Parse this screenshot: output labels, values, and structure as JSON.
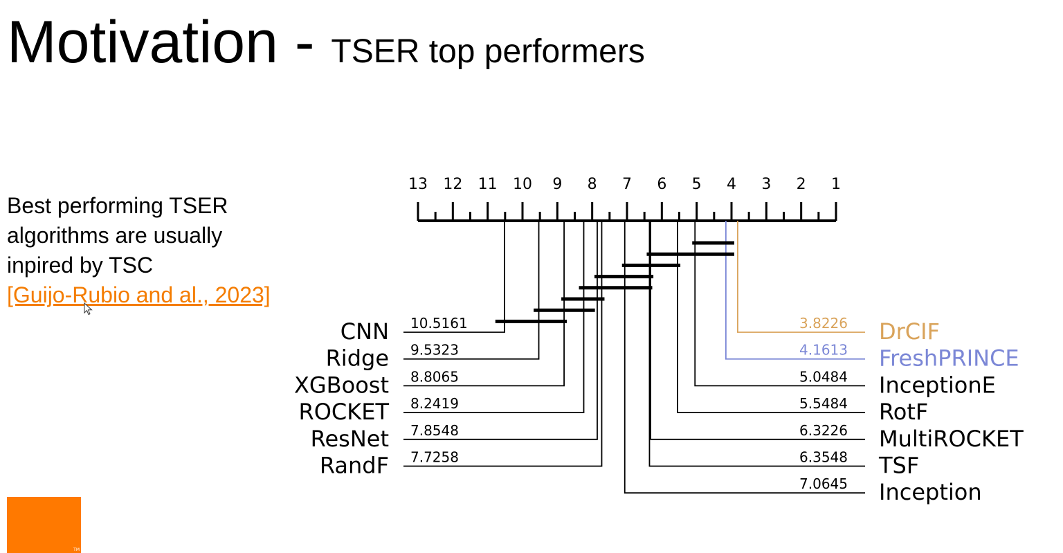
{
  "slide": {
    "title_main": "Motivation - ",
    "title_sub": "TSER top performers",
    "body_lines": [
      "Best performing TSER",
      "algorithms are usually",
      "inpired by TSC"
    ],
    "citation": "[Guijo-Rubio and al., 2023]"
  },
  "icons": {
    "cursor": "mouse-pointer-icon",
    "logo": "orange-square-logo"
  },
  "colors": {
    "accent_link": "#f47c00",
    "logo": "#ff7900",
    "drcif": "#d9a35a",
    "freshprince": "#7b87d6",
    "default_line": "#000000"
  },
  "chart_data": {
    "type": "critical-difference-diagram",
    "axis": {
      "ticks": [
        13,
        12,
        11,
        10,
        9,
        8,
        7,
        6,
        5,
        4,
        3,
        2,
        1
      ],
      "range": [
        13,
        1
      ],
      "minor_ticks": true
    },
    "left_methods": [
      {
        "name": "CNN",
        "rank": 10.5161,
        "label": "10.5161"
      },
      {
        "name": "Ridge",
        "rank": 9.5323,
        "label": "9.5323"
      },
      {
        "name": "XGBoost",
        "rank": 8.8065,
        "label": "8.8065"
      },
      {
        "name": "ROCKET",
        "rank": 8.2419,
        "label": "8.2419"
      },
      {
        "name": "ResNet",
        "rank": 7.8548,
        "label": "7.8548"
      },
      {
        "name": "RandF",
        "rank": 7.7258,
        "label": "7.7258"
      }
    ],
    "right_methods": [
      {
        "name": "DrCIF",
        "rank": 3.8226,
        "label": "3.8226",
        "color": "#d9a35a"
      },
      {
        "name": "FreshPRINCE",
        "rank": 4.1613,
        "label": "4.1613",
        "color": "#7b87d6"
      },
      {
        "name": "InceptionE",
        "rank": 5.0484,
        "label": "5.0484"
      },
      {
        "name": "RotF",
        "rank": 5.5484,
        "label": "5.5484"
      },
      {
        "name": "MultiROCKET",
        "rank": 6.3226,
        "label": "6.3226"
      },
      {
        "name": "TSF",
        "rank": 6.3548,
        "label": "6.3548"
      },
      {
        "name": "Inception",
        "rank": 7.0645,
        "label": "7.0645"
      }
    ],
    "cliques": [
      {
        "from": 5.0484,
        "to": 4.0
      },
      {
        "from": 6.3548,
        "to": 4.0
      },
      {
        "from": 7.0645,
        "to": 5.5484
      },
      {
        "from": 7.8548,
        "to": 6.3226
      },
      {
        "from": 8.3,
        "to": 6.3548
      },
      {
        "from": 8.8065,
        "to": 7.7258
      },
      {
        "from": 9.6,
        "to": 8.0
      },
      {
        "from": 10.7,
        "to": 8.8065
      }
    ]
  }
}
